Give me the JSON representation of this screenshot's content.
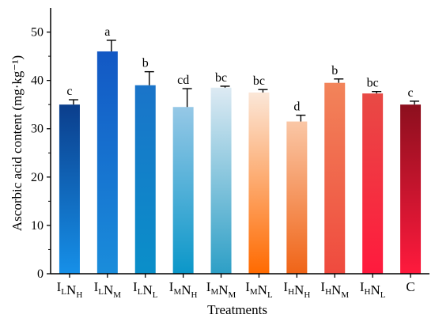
{
  "chart_data": {
    "type": "bar",
    "xlabel": "Treatments",
    "ylabel": "Ascorbic acid content (mg·kg⁻¹)",
    "ylim": [
      0,
      55
    ],
    "yticks": [
      0,
      10,
      20,
      30,
      40,
      50
    ],
    "grid": false,
    "categories": [
      {
        "parts": [
          [
            "I",
            "L"
          ],
          [
            "N",
            "H"
          ]
        ],
        "text": "ILNH"
      },
      {
        "parts": [
          [
            "I",
            "L"
          ],
          [
            "N",
            "M"
          ]
        ],
        "text": "ILNM"
      },
      {
        "parts": [
          [
            "I",
            "L"
          ],
          [
            "N",
            "L"
          ]
        ],
        "text": "ILNL"
      },
      {
        "parts": [
          [
            "I",
            "M"
          ],
          [
            "N",
            "H"
          ]
        ],
        "text": "IMNH"
      },
      {
        "parts": [
          [
            "I",
            "M"
          ],
          [
            "N",
            "M"
          ]
        ],
        "text": "IMNM"
      },
      {
        "parts": [
          [
            "I",
            "M"
          ],
          [
            "N",
            "L"
          ]
        ],
        "text": "IMNL"
      },
      {
        "parts": [
          [
            "I",
            "H"
          ],
          [
            "N",
            "H"
          ]
        ],
        "text": "IHNH"
      },
      {
        "parts": [
          [
            "I",
            "H"
          ],
          [
            "N",
            "M"
          ]
        ],
        "text": "IHNM"
      },
      {
        "parts": [
          [
            "I",
            "H"
          ],
          [
            "N",
            "L"
          ]
        ],
        "text": "IHNL"
      },
      {
        "parts": [
          [
            "C",
            ""
          ]
        ],
        "text": "C"
      }
    ],
    "values": [
      35.0,
      46.0,
      39.0,
      34.5,
      38.5,
      37.5,
      31.5,
      39.5,
      37.3,
      35.0
    ],
    "errors": [
      1.0,
      2.3,
      2.8,
      3.8,
      0.3,
      0.6,
      1.3,
      0.8,
      0.4,
      0.7
    ],
    "significance": [
      "c",
      "a",
      "b",
      "cd",
      "bc",
      "bc",
      "d",
      "b",
      "bc",
      "c"
    ],
    "colors": {
      "blues_top": [
        "#0b3e8c",
        "#1358c4",
        "#1a74c9",
        "#96c8e6",
        "#ddeaf3"
      ],
      "blues_bottom": [
        "#1690e8",
        "#1a8ddb",
        "#0a8fc9",
        "#0b97c9",
        "#2d9fc6"
      ],
      "reds_top": [
        "#fbe7d8",
        "#fac7a6",
        "#f2845a",
        "#e84a45",
        "#8c0f1e"
      ],
      "reds_bottom": [
        "#ff6a00",
        "#f06417",
        "#ef4a3e",
        "#ff1a3d",
        "#ff1a3d"
      ]
    }
  }
}
